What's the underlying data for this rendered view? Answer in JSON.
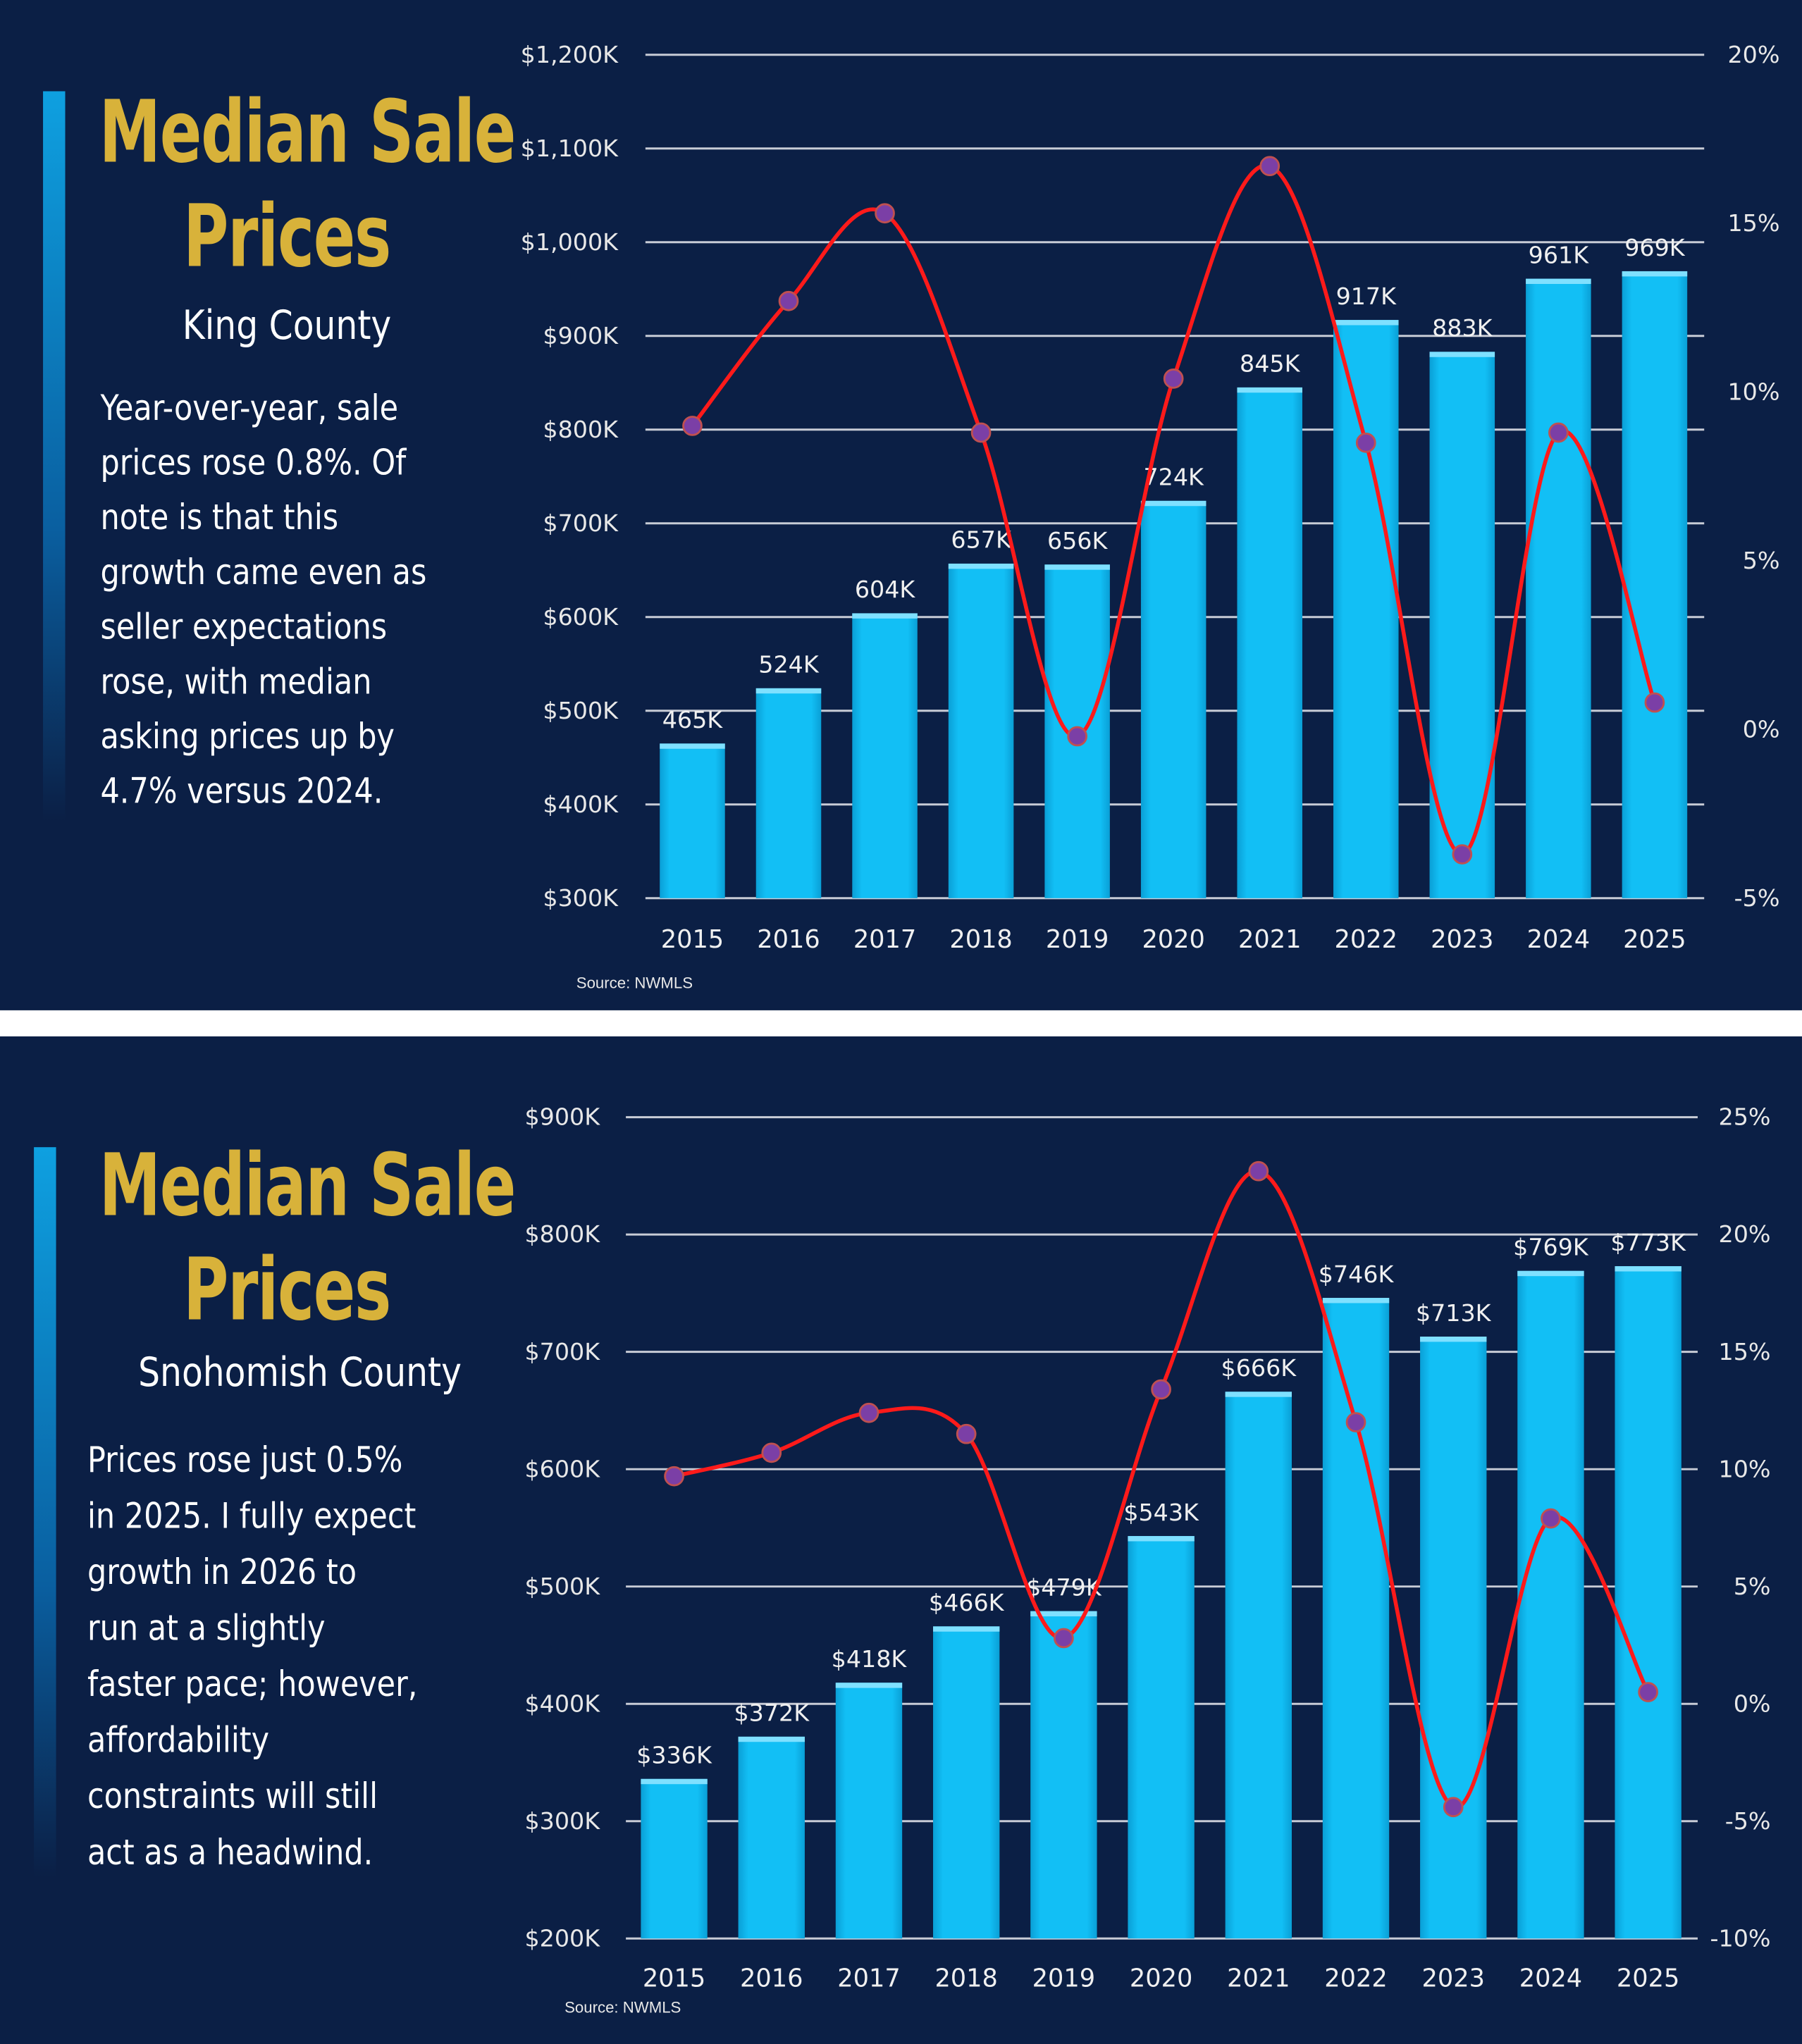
{
  "panels": [
    {
      "title_line1": "Median Sale",
      "title_line2": "Prices",
      "subtitle": "King County",
      "body_lines": [
        "Year-over-year, sale",
        "prices rose 0.8%. Of",
        "note is that this",
        "growth came even as",
        "seller expectations",
        "rose, with median",
        "asking prices up by",
        "4.7% versus 2024."
      ],
      "source": "Source: NWMLS"
    },
    {
      "title_line1": "Median Sale",
      "title_line2": "Prices",
      "subtitle": "Snohomish County",
      "body_lines": [
        "Prices rose just 0.5%",
        "in 2025. I fully expect",
        "growth in 2026 to",
        "run at a slightly",
        "faster pace; however,",
        "affordability",
        "constraints will still",
        "act as a headwind."
      ],
      "source": "Source: NWMLS"
    }
  ],
  "colors": {
    "background": "#0b1f45",
    "bar": "#12bff5",
    "line": "#ff1a1a",
    "marker": "#7b3fa6",
    "title": "#d8b23a",
    "grid": "#c8ccd6"
  },
  "chart_data": [
    {
      "type": "bar+line",
      "categories": [
        "2015",
        "2016",
        "2017",
        "2018",
        "2019",
        "2020",
        "2021",
        "2022",
        "2023",
        "2024",
        "2025"
      ],
      "series": [
        {
          "type": "bar",
          "axis": "left",
          "values": [
            465,
            524,
            604,
            657,
            656,
            724,
            845,
            917,
            883,
            961,
            969
          ],
          "data_labels": [
            "465K",
            "524K",
            "604K",
            "657K",
            "656K",
            "724K",
            "845K",
            "917K",
            "883K",
            "961K",
            "969K"
          ]
        },
        {
          "type": "line",
          "axis": "right",
          "values": [
            9.0,
            12.7,
            15.3,
            8.8,
            -0.2,
            10.4,
            16.7,
            8.5,
            -3.7,
            8.8,
            0.8
          ]
        }
      ],
      "left_axis": {
        "ylim": [
          300,
          1200
        ],
        "ticks": [
          300,
          400,
          500,
          600,
          700,
          800,
          900,
          1000,
          1100,
          1200
        ],
        "tick_labels": [
          "$300K",
          "$400K",
          "$500K",
          "$600K",
          "$700K",
          "$800K",
          "$900K",
          "$1,000K",
          "$1,100K",
          "$1,200K"
        ]
      },
      "right_axis": {
        "ylim": [
          -5,
          20
        ],
        "ticks": [
          -5,
          0,
          5,
          10,
          15,
          20
        ],
        "tick_labels": [
          "-5%",
          "0%",
          "5%",
          "10%",
          "15%",
          "20%"
        ]
      },
      "grid": true
    },
    {
      "type": "bar+line",
      "categories": [
        "2015",
        "2016",
        "2017",
        "2018",
        "2019",
        "2020",
        "2021",
        "2022",
        "2023",
        "2024",
        "2025"
      ],
      "series": [
        {
          "type": "bar",
          "axis": "left",
          "values": [
            336,
            372,
            418,
            466,
            479,
            543,
            666,
            746,
            713,
            769,
            773
          ],
          "data_labels": [
            "$336K",
            "$372K",
            "$418K",
            "$466K",
            "$479K",
            "$543K",
            "$666K",
            "$746K",
            "$713K",
            "$769K",
            "$773K"
          ]
        },
        {
          "type": "line",
          "axis": "right",
          "values": [
            9.7,
            10.7,
            12.4,
            11.5,
            2.8,
            13.4,
            22.7,
            12.0,
            -4.4,
            7.9,
            0.5
          ]
        }
      ],
      "left_axis": {
        "ylim": [
          200,
          900
        ],
        "ticks": [
          200,
          300,
          400,
          500,
          600,
          700,
          800,
          900
        ],
        "tick_labels": [
          "$200K",
          "$300K",
          "$400K",
          "$500K",
          "$600K",
          "$700K",
          "$800K",
          "$900K"
        ]
      },
      "right_axis": {
        "ylim": [
          -10,
          25
        ],
        "ticks": [
          -10,
          -5,
          0,
          5,
          10,
          15,
          20,
          25
        ],
        "tick_labels": [
          "-10%",
          "-5%",
          "0%",
          "5%",
          "10%",
          "15%",
          "20%",
          "25%"
        ]
      },
      "grid": true
    }
  ]
}
